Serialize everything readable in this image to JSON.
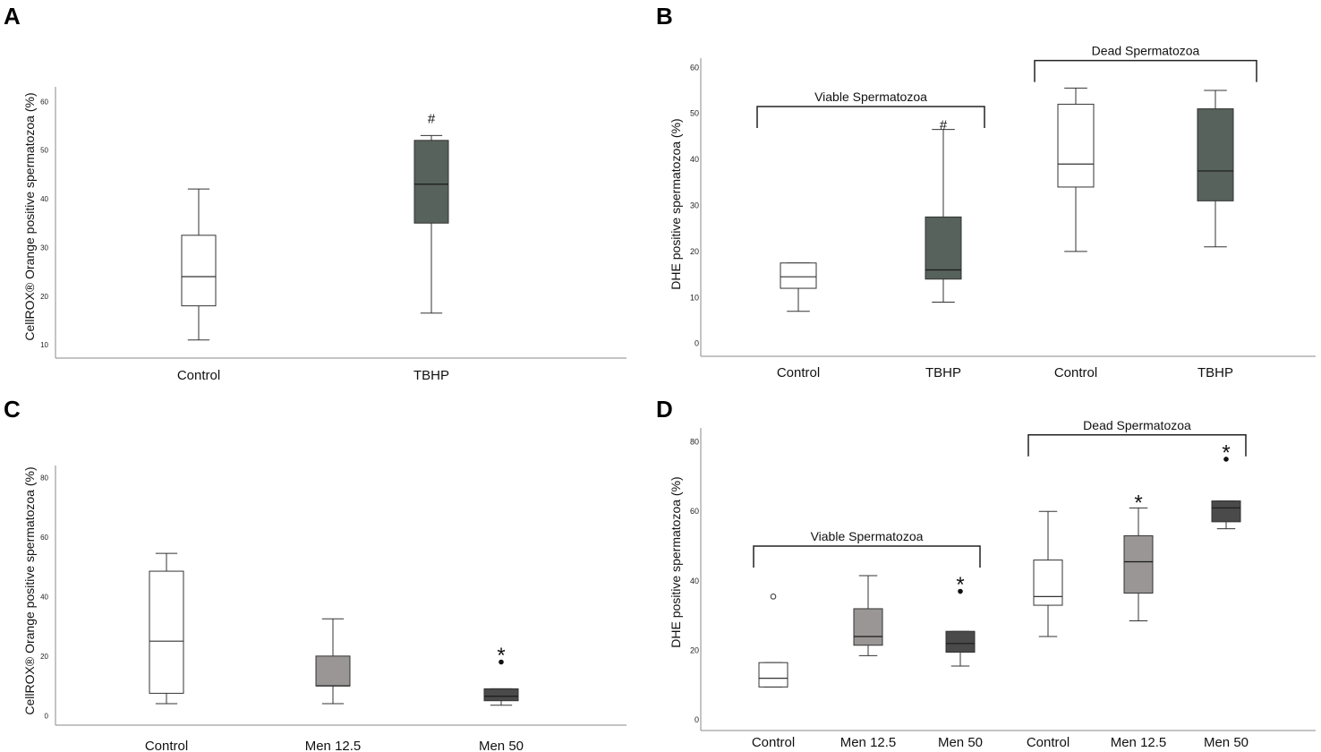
{
  "chart_data": [
    {
      "panel": "A",
      "type": "box",
      "ylabel": "CellROX® Orange positive spermatozoa (%)",
      "yticks": [
        10,
        20,
        30,
        40,
        50,
        60
      ],
      "ylim": [
        8,
        63
      ],
      "categories": [
        "Control",
        "TBHP"
      ],
      "boxes": [
        {
          "category": "Control",
          "min": 11,
          "q1": 18,
          "median": 24,
          "q3": 32.5,
          "max": 42,
          "fill": "#ffffff"
        },
        {
          "category": "TBHP",
          "min": 16.5,
          "q1": 35,
          "median": 43,
          "q3": 52,
          "max": 53,
          "fill": "#56625b",
          "marker": "#",
          "marker_value": 56.5
        }
      ]
    },
    {
      "panel": "B",
      "type": "box",
      "ylabel": "DHE positive spermatozoa (%)",
      "yticks": [
        0,
        10,
        20,
        30,
        40,
        50,
        60
      ],
      "ylim": [
        -2,
        62
      ],
      "categories": [
        "Control",
        "TBHP",
        "Control",
        "TBHP"
      ],
      "groups": [
        {
          "label": "Viable Spermatozoa",
          "span": [
            0,
            1
          ],
          "level": 51.5
        },
        {
          "label": "Dead Spermatozoa",
          "span": [
            2,
            3
          ],
          "level": 61.5
        }
      ],
      "boxes": [
        {
          "category": "Control",
          "min": 7,
          "q1": 12,
          "median": 14.5,
          "q3": 17.5,
          "max": 17.5,
          "fill": "#ffffff"
        },
        {
          "category": "TBHP",
          "min": 9,
          "q1": 14,
          "median": 16,
          "q3": 27.5,
          "max": 46.5,
          "fill": "#56625b",
          "marker": "#",
          "marker_value": 47.5
        },
        {
          "category": "Control",
          "min": 20,
          "q1": 34,
          "median": 39,
          "q3": 52,
          "max": 55.5,
          "fill": "#ffffff"
        },
        {
          "category": "TBHP",
          "min": 21,
          "q1": 31,
          "median": 37.5,
          "q3": 51,
          "max": 55,
          "fill": "#56625b"
        }
      ]
    },
    {
      "panel": "C",
      "type": "box",
      "ylabel": "CellROX® Orange positive spermatozoa (%)",
      "yticks": [
        0,
        20,
        40,
        60,
        80
      ],
      "ylim": [
        -2,
        84
      ],
      "categories": [
        "Control",
        "Men 12.5",
        "Men 50"
      ],
      "boxes": [
        {
          "category": "Control",
          "min": 4,
          "q1": 7.5,
          "median": 25,
          "q3": 48.5,
          "max": 54.5,
          "fill": "#ffffff"
        },
        {
          "category": "Men 12.5",
          "min": 4,
          "q1": 10,
          "median": 10,
          "q3": 20,
          "max": 32.5,
          "fill": "#9a9696"
        },
        {
          "category": "Men 50",
          "min": 3.5,
          "q1": 5,
          "median": 6.5,
          "q3": 9,
          "max": 9,
          "fill": "#4a4a4a",
          "outliers": [
            {
              "value": 18,
              "style": "filled"
            }
          ],
          "marker": "*",
          "marker_value": 21.5
        }
      ]
    },
    {
      "panel": "D",
      "type": "box",
      "ylabel": "DHE positive spermatozoa (%)",
      "yticks": [
        0,
        20,
        40,
        60,
        80
      ],
      "ylim": [
        -2,
        84
      ],
      "categories": [
        "Control",
        "Men 12.5",
        "Men 50",
        "Control",
        "Men 12.5",
        "Men 50"
      ],
      "groups": [
        {
          "label": "Viable Spermatozoa",
          "span": [
            0,
            2
          ],
          "level": 50
        },
        {
          "label": "Dead Spermatozoa",
          "span": [
            3,
            5
          ],
          "level": 82
        }
      ],
      "boxes": [
        {
          "category": "Control",
          "min": 9.5,
          "q1": 9.5,
          "median": 12,
          "q3": 16.5,
          "max": 16.5,
          "fill": "#ffffff",
          "outliers": [
            {
              "value": 35.5,
              "style": "open"
            }
          ]
        },
        {
          "category": "Men 12.5",
          "min": 18.5,
          "q1": 21.5,
          "median": 24,
          "q3": 32,
          "max": 41.5,
          "fill": "#9a9696"
        },
        {
          "category": "Men 50",
          "min": 15.5,
          "q1": 19.5,
          "median": 22,
          "q3": 25.5,
          "max": 25.5,
          "fill": "#4a4a4a",
          "outliers": [
            {
              "value": 37,
              "style": "filled"
            }
          ],
          "marker": "*",
          "marker_value": 40
        },
        {
          "category": "Control",
          "min": 24,
          "q1": 33,
          "median": 35.5,
          "q3": 46,
          "max": 60,
          "fill": "#ffffff"
        },
        {
          "category": "Men 12.5",
          "min": 28.5,
          "q1": 36.5,
          "median": 45.5,
          "q3": 53,
          "max": 61,
          "fill": "#9a9696",
          "marker": "*",
          "marker_value": 63.5
        },
        {
          "category": "Men 50",
          "min": 55,
          "q1": 57,
          "median": 61,
          "q3": 63,
          "max": 63,
          "fill": "#4a4a4a",
          "outliers": [
            {
              "value": 75,
              "style": "filled"
            }
          ],
          "marker": "*",
          "marker_value": 78
        }
      ]
    }
  ]
}
